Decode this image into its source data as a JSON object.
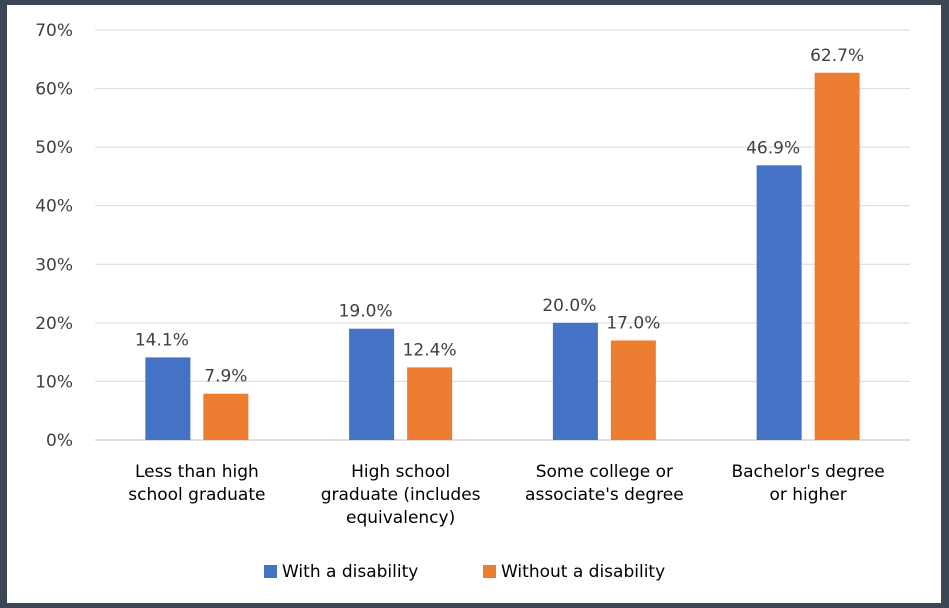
{
  "chart_data": {
    "type": "bar",
    "title": "",
    "xlabel": "",
    "ylabel": "",
    "ylim": [
      0,
      70
    ],
    "y_ticks": [
      "0%",
      "10%",
      "20%",
      "30%",
      "40%",
      "50%",
      "60%",
      "70%"
    ],
    "y_tick_values": [
      0,
      10,
      20,
      30,
      40,
      50,
      60,
      70
    ],
    "grid": true,
    "legend_position": "bottom",
    "categories": [
      [
        "Less than high",
        "school graduate"
      ],
      [
        "High school",
        "graduate (includes",
        "equivalency)"
      ],
      [
        "Some college or",
        "associate's degree"
      ],
      [
        "Bachelor's degree",
        "or higher"
      ]
    ],
    "series": [
      {
        "name": "With a disability",
        "color": "#4472c4",
        "values": [
          14.1,
          19.0,
          20.0,
          46.9
        ],
        "labels": [
          "14.1%",
          "19.0%",
          "20.0%",
          "46.9%"
        ]
      },
      {
        "name": "Without a disability",
        "color": "#ed7d31",
        "values": [
          7.9,
          12.4,
          17.0,
          62.7
        ],
        "labels": [
          "7.9%",
          "12.4%",
          "17.0%",
          "62.7%"
        ]
      }
    ]
  }
}
